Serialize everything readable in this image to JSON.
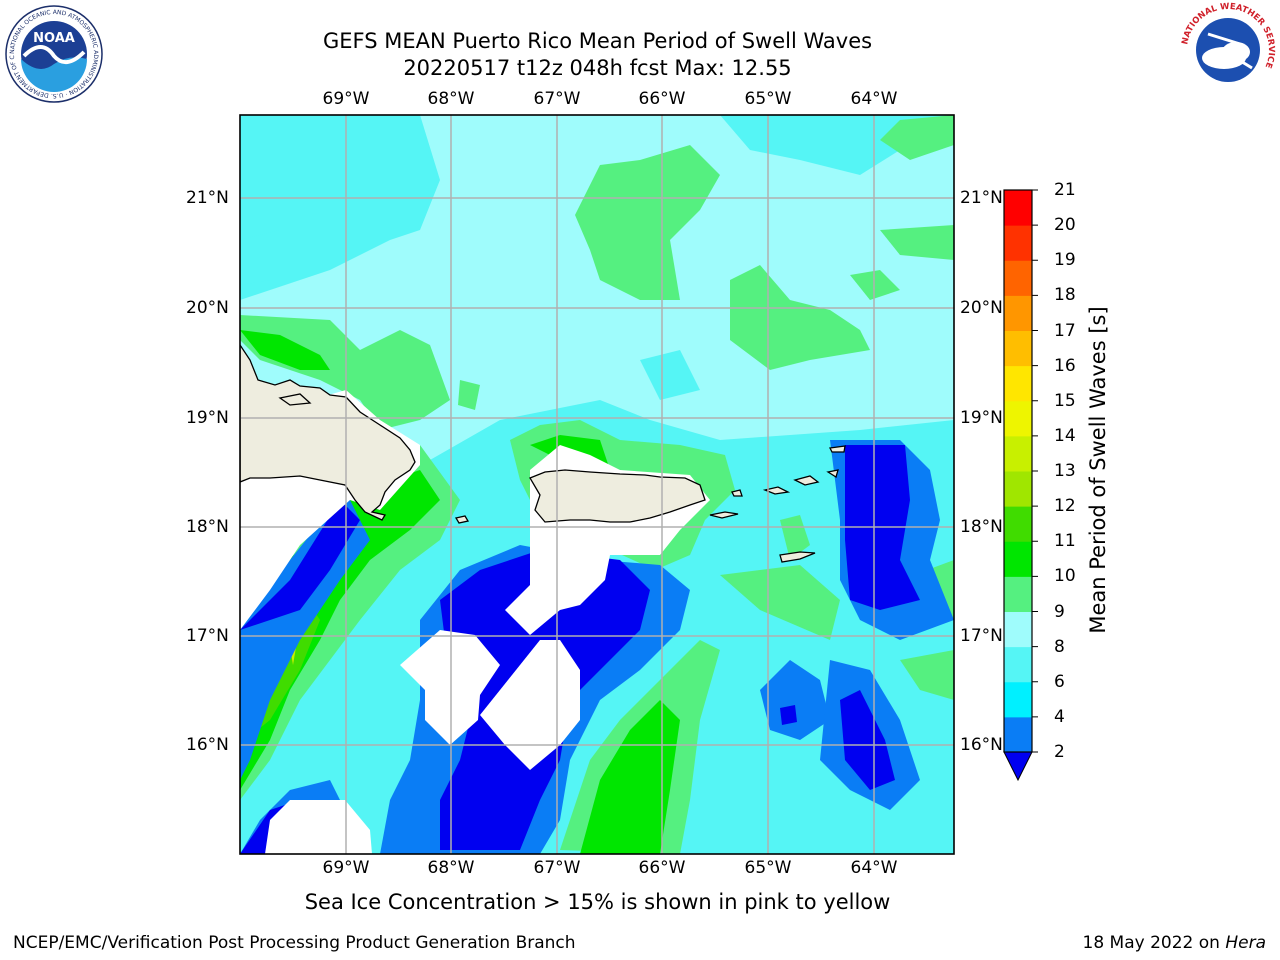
{
  "title": {
    "line1": "GEFS MEAN Puerto Rico Mean Period of Swell Waves",
    "line2": "20220517 t12z 048h fcst    Max: 12.55"
  },
  "map": {
    "lon_labels": [
      "69°W",
      "68°W",
      "67°W",
      "66°W",
      "65°W",
      "64°W"
    ],
    "lat_labels": [
      "21°N",
      "20°N",
      "19°N",
      "18°N",
      "17°N",
      "16°N"
    ],
    "colors": {
      "ocean_light": "#9ffcfc",
      "land": "#eeeddf",
      "gridline": "#b0b0b0"
    }
  },
  "colorbar": {
    "label": "Mean Period of Swell Waves [s]",
    "ticks": [
      "2",
      "4",
      "6",
      "8",
      "9",
      "10",
      "11",
      "12",
      "13",
      "14",
      "15",
      "16",
      "17",
      "18",
      "19",
      "20",
      "21"
    ],
    "colors": [
      "#0000f0",
      "#0a7df5",
      "#00f0ff",
      "#55f5f5",
      "#9ffcfc",
      "#55f080",
      "#00e600",
      "#40dc00",
      "#a0e600",
      "#c8f000",
      "#eef500",
      "#ffe600",
      "#ffbe00",
      "#ff9600",
      "#ff6400",
      "#ff3200",
      "#ff0000"
    ]
  },
  "note": "Sea Ice Concentration > 15% is shown in pink to yellow",
  "footer": {
    "left": "NCEP/EMC/Verification Post Processing Product Generation Branch",
    "right_prefix": "18 May 2022 on ",
    "right_host": "Hera"
  },
  "logos": {
    "noaa": "NOAA",
    "noaa_ring": "NATIONAL OCEANIC AND ATMOSPHERIC ADMINISTRATION · U.S. DEPARTMENT OF COMMERCE",
    "nws_ring": "NATIONAL WEATHER SERVICE"
  }
}
